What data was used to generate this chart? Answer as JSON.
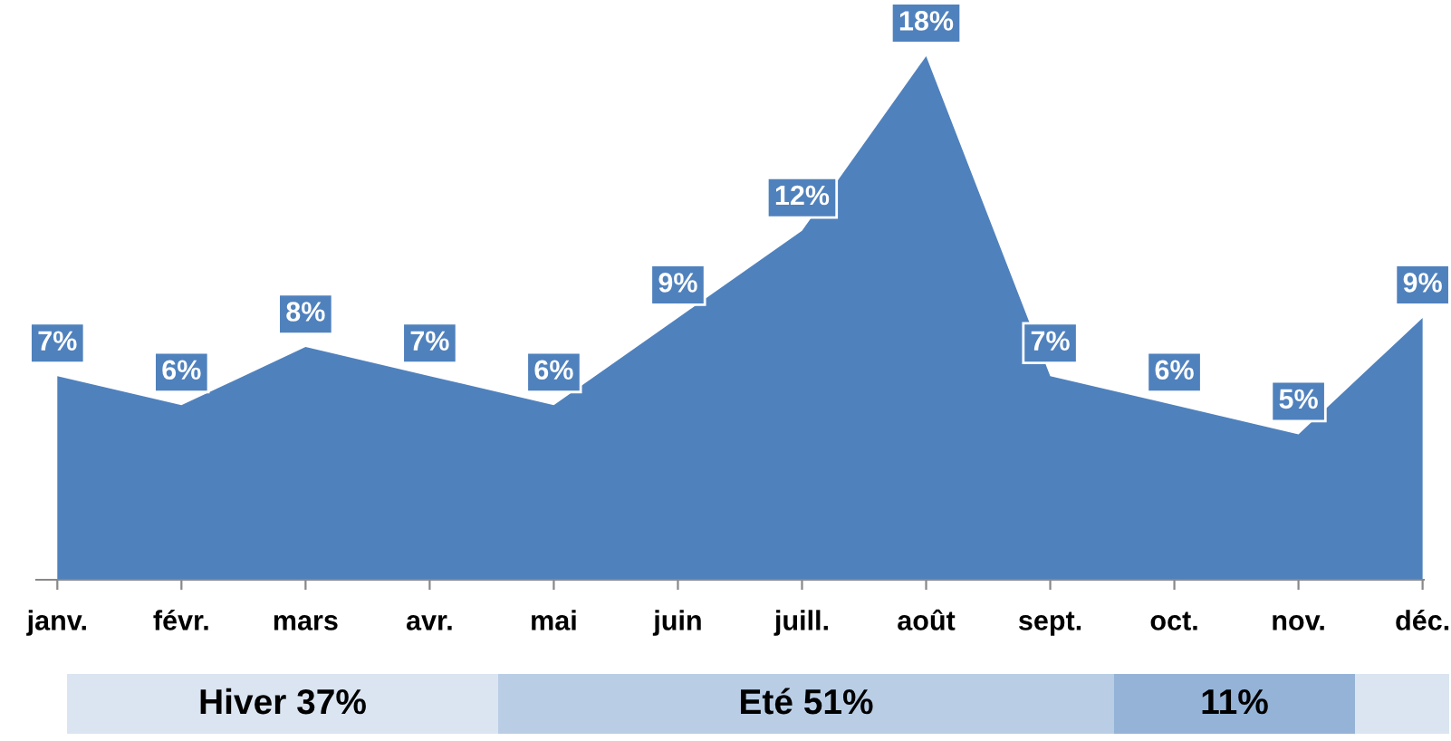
{
  "chart_data": {
    "type": "area",
    "categories": [
      "janv.",
      "févr.",
      "mars",
      "avr.",
      "mai",
      "juin",
      "juill.",
      "août",
      "sept.",
      "oct.",
      "nov.",
      "déc."
    ],
    "values": [
      7,
      6,
      8,
      7,
      6,
      9,
      12,
      18,
      7,
      6,
      5,
      9
    ],
    "value_labels": [
      "7%",
      "6%",
      "8%",
      "7%",
      "6%",
      "9%",
      "12%",
      "18%",
      "7%",
      "6%",
      "5%",
      "9%"
    ],
    "color": "#4f81bd",
    "annotations": [
      "Hiver 37%",
      "Eté 51%",
      "11%"
    ]
  }
}
